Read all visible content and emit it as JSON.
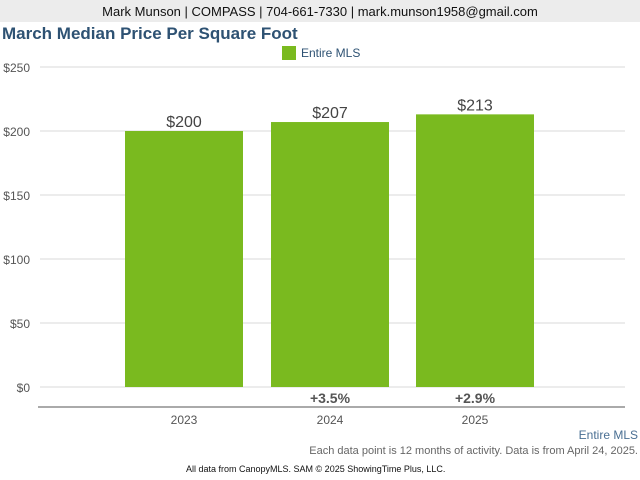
{
  "header": "Mark Munson | COMPASS | 704-661-7330 | mark.munson1958@gmail.com",
  "colors": {
    "bar": "#7aba1f",
    "title": "#2e5273"
  },
  "chart_data": {
    "type": "bar",
    "title": "March Median Price Per Square Foot",
    "categories": [
      "2023",
      "2024",
      "2025"
    ],
    "series": [
      {
        "name": "Entire MLS",
        "values": [
          200,
          207,
          213
        ]
      }
    ],
    "data_labels": [
      "$200",
      "$207",
      "$213"
    ],
    "changes": [
      "",
      "+3.5%",
      "+2.9%"
    ],
    "yticks": [
      "$0",
      "$50",
      "$100",
      "$150",
      "$200",
      "$250"
    ],
    "ytick_values": [
      0,
      50,
      100,
      150,
      200,
      250
    ],
    "ylim": [
      0,
      250
    ],
    "grid": true,
    "legend": "top-center"
  },
  "source_label": "Entire MLS",
  "note": "Each data point is 12 months of activity. Data is from April 24, 2025.",
  "footer": "All data from CanopyMLS. SAM © 2025 ShowingTime Plus, LLC."
}
